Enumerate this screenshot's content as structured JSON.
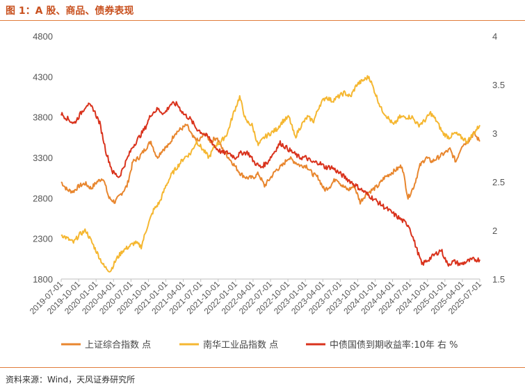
{
  "header": {
    "title": "图 1：A 股、商品、债券表现"
  },
  "footer": {
    "source": "资料来源：Wind，天风证券研究所"
  },
  "chart_data": {
    "type": "line",
    "x_ticks": [
      "2019-07-01",
      "2019-10-01",
      "2020-01-01",
      "2020-04-01",
      "2020-07-01",
      "2020-10-01",
      "2021-01-01",
      "2021-04-01",
      "2021-07-01",
      "2021-10-01",
      "2022-01-01",
      "2022-04-01",
      "2022-07-01",
      "2022-10-01",
      "2023-01-01",
      "2023-04-01",
      "2023-07-01",
      "2023-10-01",
      "2024-01-01",
      "2024-04-01",
      "2024-07-01",
      "2024-10-01",
      "2025-01-01",
      "2025-04-01",
      "2025-07-01"
    ],
    "y_left": {
      "ticks": [
        "1800",
        "2300",
        "2800",
        "3300",
        "3800",
        "4300",
        "4800"
      ],
      "ylim": [
        1800,
        4800
      ]
    },
    "y_right": {
      "ticks": [
        "1.5",
        "2",
        "2.5",
        "3",
        "3.5",
        "4"
      ],
      "ylim": [
        1.5,
        4
      ]
    },
    "series": [
      {
        "name": "上证综合指数 点",
        "axis": "left",
        "color": "#e8862e",
        "values": [
          3000,
          2900,
          2880,
          2950,
          2980,
          2920,
          3000,
          3050,
          2800,
          2750,
          2850,
          2950,
          3250,
          3300,
          3400,
          3500,
          3300,
          3400,
          3450,
          3600,
          3650,
          3700,
          3550,
          3500,
          3600,
          3500,
          3550,
          3400,
          3300,
          3200,
          3100,
          3050,
          3050,
          3100,
          2950,
          3050,
          3150,
          3200,
          3300,
          3250,
          3200,
          3200,
          3100,
          3050,
          2900,
          2950,
          3050,
          2950,
          2900,
          2950,
          2750,
          2850,
          2900,
          2950,
          3050,
          3100,
          3150,
          3200,
          2800,
          2950,
          3200,
          3300,
          3250,
          3300,
          3350,
          3400,
          3250,
          3450,
          3500,
          3600,
          3500
        ]
      },
      {
        "name": "南华工业品指数 点",
        "axis": "left",
        "color": "#f5b731",
        "values": [
          2350,
          2300,
          2250,
          2350,
          2400,
          2250,
          2100,
          1950,
          1900,
          2050,
          2150,
          2200,
          2250,
          2200,
          2450,
          2650,
          2750,
          2950,
          3100,
          3200,
          3300,
          3350,
          3500,
          3400,
          3300,
          3450,
          3500,
          3600,
          3850,
          4050,
          3750,
          3700,
          3450,
          3550,
          3600,
          3650,
          3750,
          3800,
          3550,
          3700,
          3800,
          3750,
          3950,
          4050,
          4000,
          4050,
          4100,
          4050,
          4200,
          4250,
          4300,
          4100,
          3900,
          3800,
          3700,
          3800,
          3800,
          3800,
          3700,
          3750,
          3850,
          3750,
          3600,
          3550,
          3600,
          3550,
          3500,
          3600,
          3700
        ]
      },
      {
        "name": "中债国债到期收益率:10年 右 %",
        "axis": "right",
        "color": "#d9321c",
        "values": [
          3.2,
          3.15,
          3.1,
          3.2,
          3.3,
          3.25,
          3.1,
          2.8,
          2.6,
          2.55,
          2.7,
          2.85,
          2.95,
          3.05,
          3.2,
          3.25,
          3.2,
          3.3,
          3.3,
          3.2,
          3.15,
          3.05,
          3.0,
          2.95,
          2.85,
          2.8,
          2.8,
          2.75,
          2.8,
          2.8,
          2.7,
          2.65,
          2.7,
          2.8,
          2.9,
          2.85,
          2.8,
          2.75,
          2.75,
          2.7,
          2.7,
          2.65,
          2.65,
          2.6,
          2.55,
          2.5,
          2.45,
          2.4,
          2.35,
          2.3,
          2.25,
          2.2,
          2.15,
          2.1,
          2.05,
          1.85,
          1.65,
          1.7,
          1.75,
          1.8,
          1.65,
          1.68,
          1.65,
          1.68,
          1.7,
          1.7
        ]
      }
    ],
    "legend_position": "bottom",
    "grid": false
  }
}
